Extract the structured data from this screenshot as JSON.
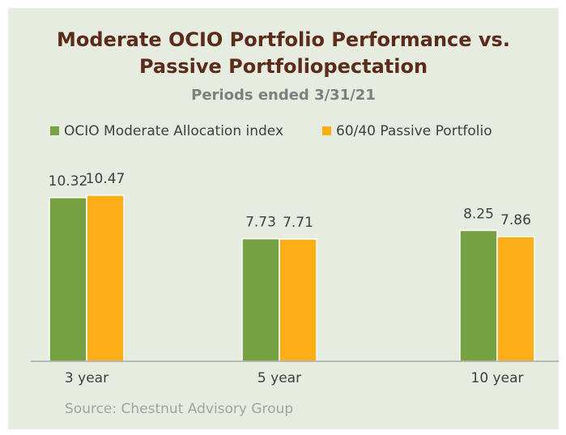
{
  "chart_data": {
    "type": "bar",
    "title": [
      "Moderate OCIO Portfolio Performance vs.",
      "Passive Portfoliopectation"
    ],
    "subtitle": "Periods ended 3/31/21",
    "categories": [
      "3 year",
      "5 year",
      "10 year"
    ],
    "series": [
      {
        "name": "OCIO Moderate Allocation index",
        "color": "#77a244",
        "values": [
          10.32,
          7.73,
          8.25
        ]
      },
      {
        "name": "60/40 Passive Portfolio",
        "color": "#fbae17",
        "values": [
          10.47,
          7.71,
          7.86
        ]
      }
    ],
    "ylim": [
      0,
      12
    ],
    "source": "Source:  Chestnut Advisory Group"
  }
}
